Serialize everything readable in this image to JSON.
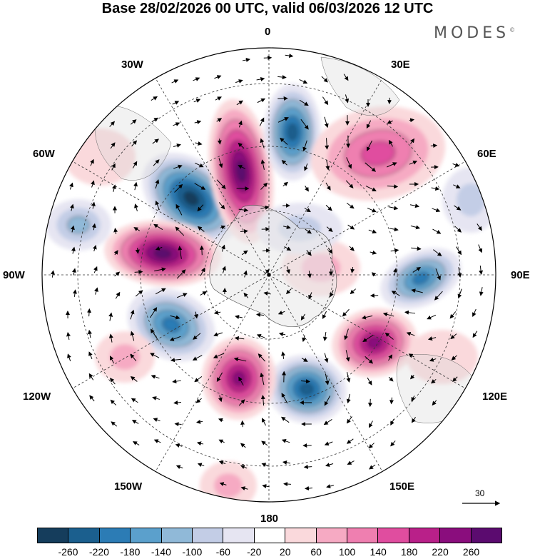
{
  "header": {
    "title": "Base 28/02/2026 00 UTC, valid 06/03/2026 12 UTC",
    "brand": "MODES",
    "brand_mark": "©"
  },
  "map": {
    "projection": "south-polar-stereographic",
    "longitude_labels": {
      "n0": "0",
      "n30e": "30E",
      "n60e": "60E",
      "n90e": "90E",
      "n120e": "120E",
      "n150e": "150E",
      "n180": "180",
      "n150w": "150W",
      "n120w": "120W",
      "n90w": "90W",
      "n60w": "60W",
      "n30w": "30W"
    },
    "reference_vector": "30"
  },
  "colorbar": {
    "colors": [
      "#153d5c",
      "#1b5f8e",
      "#2c7cb5",
      "#5ba0cc",
      "#90b9d8",
      "#c3cde6",
      "#e6e5f2",
      "#ffffff",
      "#fad9dc",
      "#f6aac3",
      "#ef7fb0",
      "#e04d9f",
      "#b92089",
      "#8a0d7d",
      "#5b0b6f"
    ],
    "ticks": [
      "-260",
      "-220",
      "-180",
      "-140",
      "-100",
      "-60",
      "-20",
      "20",
      "60",
      "100",
      "140",
      "180",
      "220",
      "260"
    ]
  }
}
